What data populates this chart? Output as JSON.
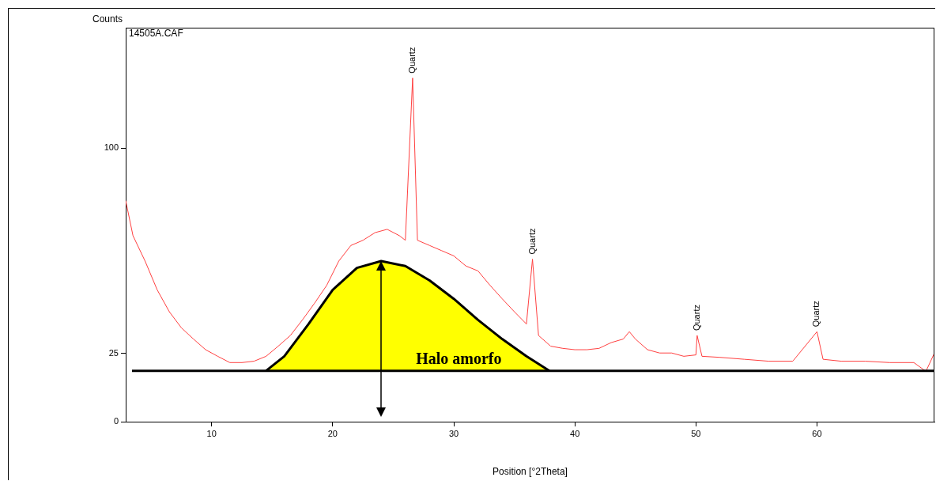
{
  "chart_data": {
    "type": "line",
    "xlabel": "Position [°2Theta]",
    "ylabel": "Counts",
    "xlim": [
      2.9,
      69.7
    ],
    "xticks": [
      10,
      20,
      30,
      40,
      50,
      60
    ],
    "ylim": [
      0,
      144
    ],
    "yticks": [
      0,
      25,
      100
    ],
    "grid": false,
    "legend": false,
    "marker": "none",
    "series": [
      {
        "color": "#ff4040",
        "x": [
          2.9,
          3.5,
          4.5,
          5.5,
          6.5,
          7.5,
          8.5,
          9.5,
          10.5,
          11.5,
          12.5,
          13.5,
          14.5,
          15.5,
          16.5,
          17.5,
          18.5,
          19.5,
          20.5,
          21.5,
          22.5,
          23.5,
          24.5,
          25.5,
          26.0,
          26.6,
          27.0,
          28,
          29,
          30,
          31,
          32,
          33,
          34,
          35,
          36,
          36.5,
          37,
          38,
          39,
          40,
          41,
          42,
          43,
          44,
          44.5,
          45,
          46,
          47,
          48,
          49,
          50,
          50.1,
          50.5,
          52,
          54,
          56,
          58,
          60,
          60.5,
          62,
          64,
          66,
          68,
          69,
          69.7
        ],
        "values": [
          80.8,
          68,
          58.7,
          48.2,
          40.2,
          34.3,
          30.2,
          26.3,
          23.9,
          21.6,
          21.6,
          22.1,
          23.9,
          27.6,
          31.5,
          37.2,
          43.3,
          49.8,
          58.7,
          64.4,
          66.3,
          69.1,
          70.3,
          68,
          66.3,
          125.6,
          66.3,
          64.4,
          62.5,
          60.6,
          56.9,
          55.1,
          49.8,
          44.9,
          40.2,
          35.7,
          59.4,
          31.5,
          27.6,
          26.8,
          26.3,
          26.3,
          26.8,
          28.9,
          30.2,
          32.9,
          30.2,
          26.3,
          25.1,
          25.1,
          23.9,
          24.4,
          31.5,
          23.9,
          23.5,
          22.8,
          22.1,
          22.1,
          32.9,
          22.8,
          22.1,
          22.1,
          21.6,
          21.6,
          18.4,
          25.1
        ]
      },
      {
        "type": "area",
        "color": "#ffff00",
        "x": [
          14.5,
          16,
          18,
          20,
          22,
          24,
          26,
          28,
          30,
          32,
          34,
          36,
          37.9
        ],
        "values": [
          18.6,
          23.9,
          35.7,
          48.2,
          56.2,
          58.7,
          56.9,
          51.6,
          44.9,
          37.2,
          30.2,
          23.9,
          18.6
        ]
      }
    ],
    "ref_lines": [
      {
        "axis": "y",
        "value": 18.6,
        "color": "#000000"
      }
    ],
    "annotations": [
      "14505A.CAF",
      {
        "text": "Quartz",
        "x": 26.6,
        "y": 125.6
      },
      {
        "text": "Quartz",
        "x": 36.5,
        "y": 59.4
      },
      {
        "text": "Quartz",
        "x": 50.1,
        "y": 31.5
      },
      {
        "text": "Quartz",
        "x": 60,
        "y": 32.9
      },
      "Halo amorfo"
    ]
  }
}
